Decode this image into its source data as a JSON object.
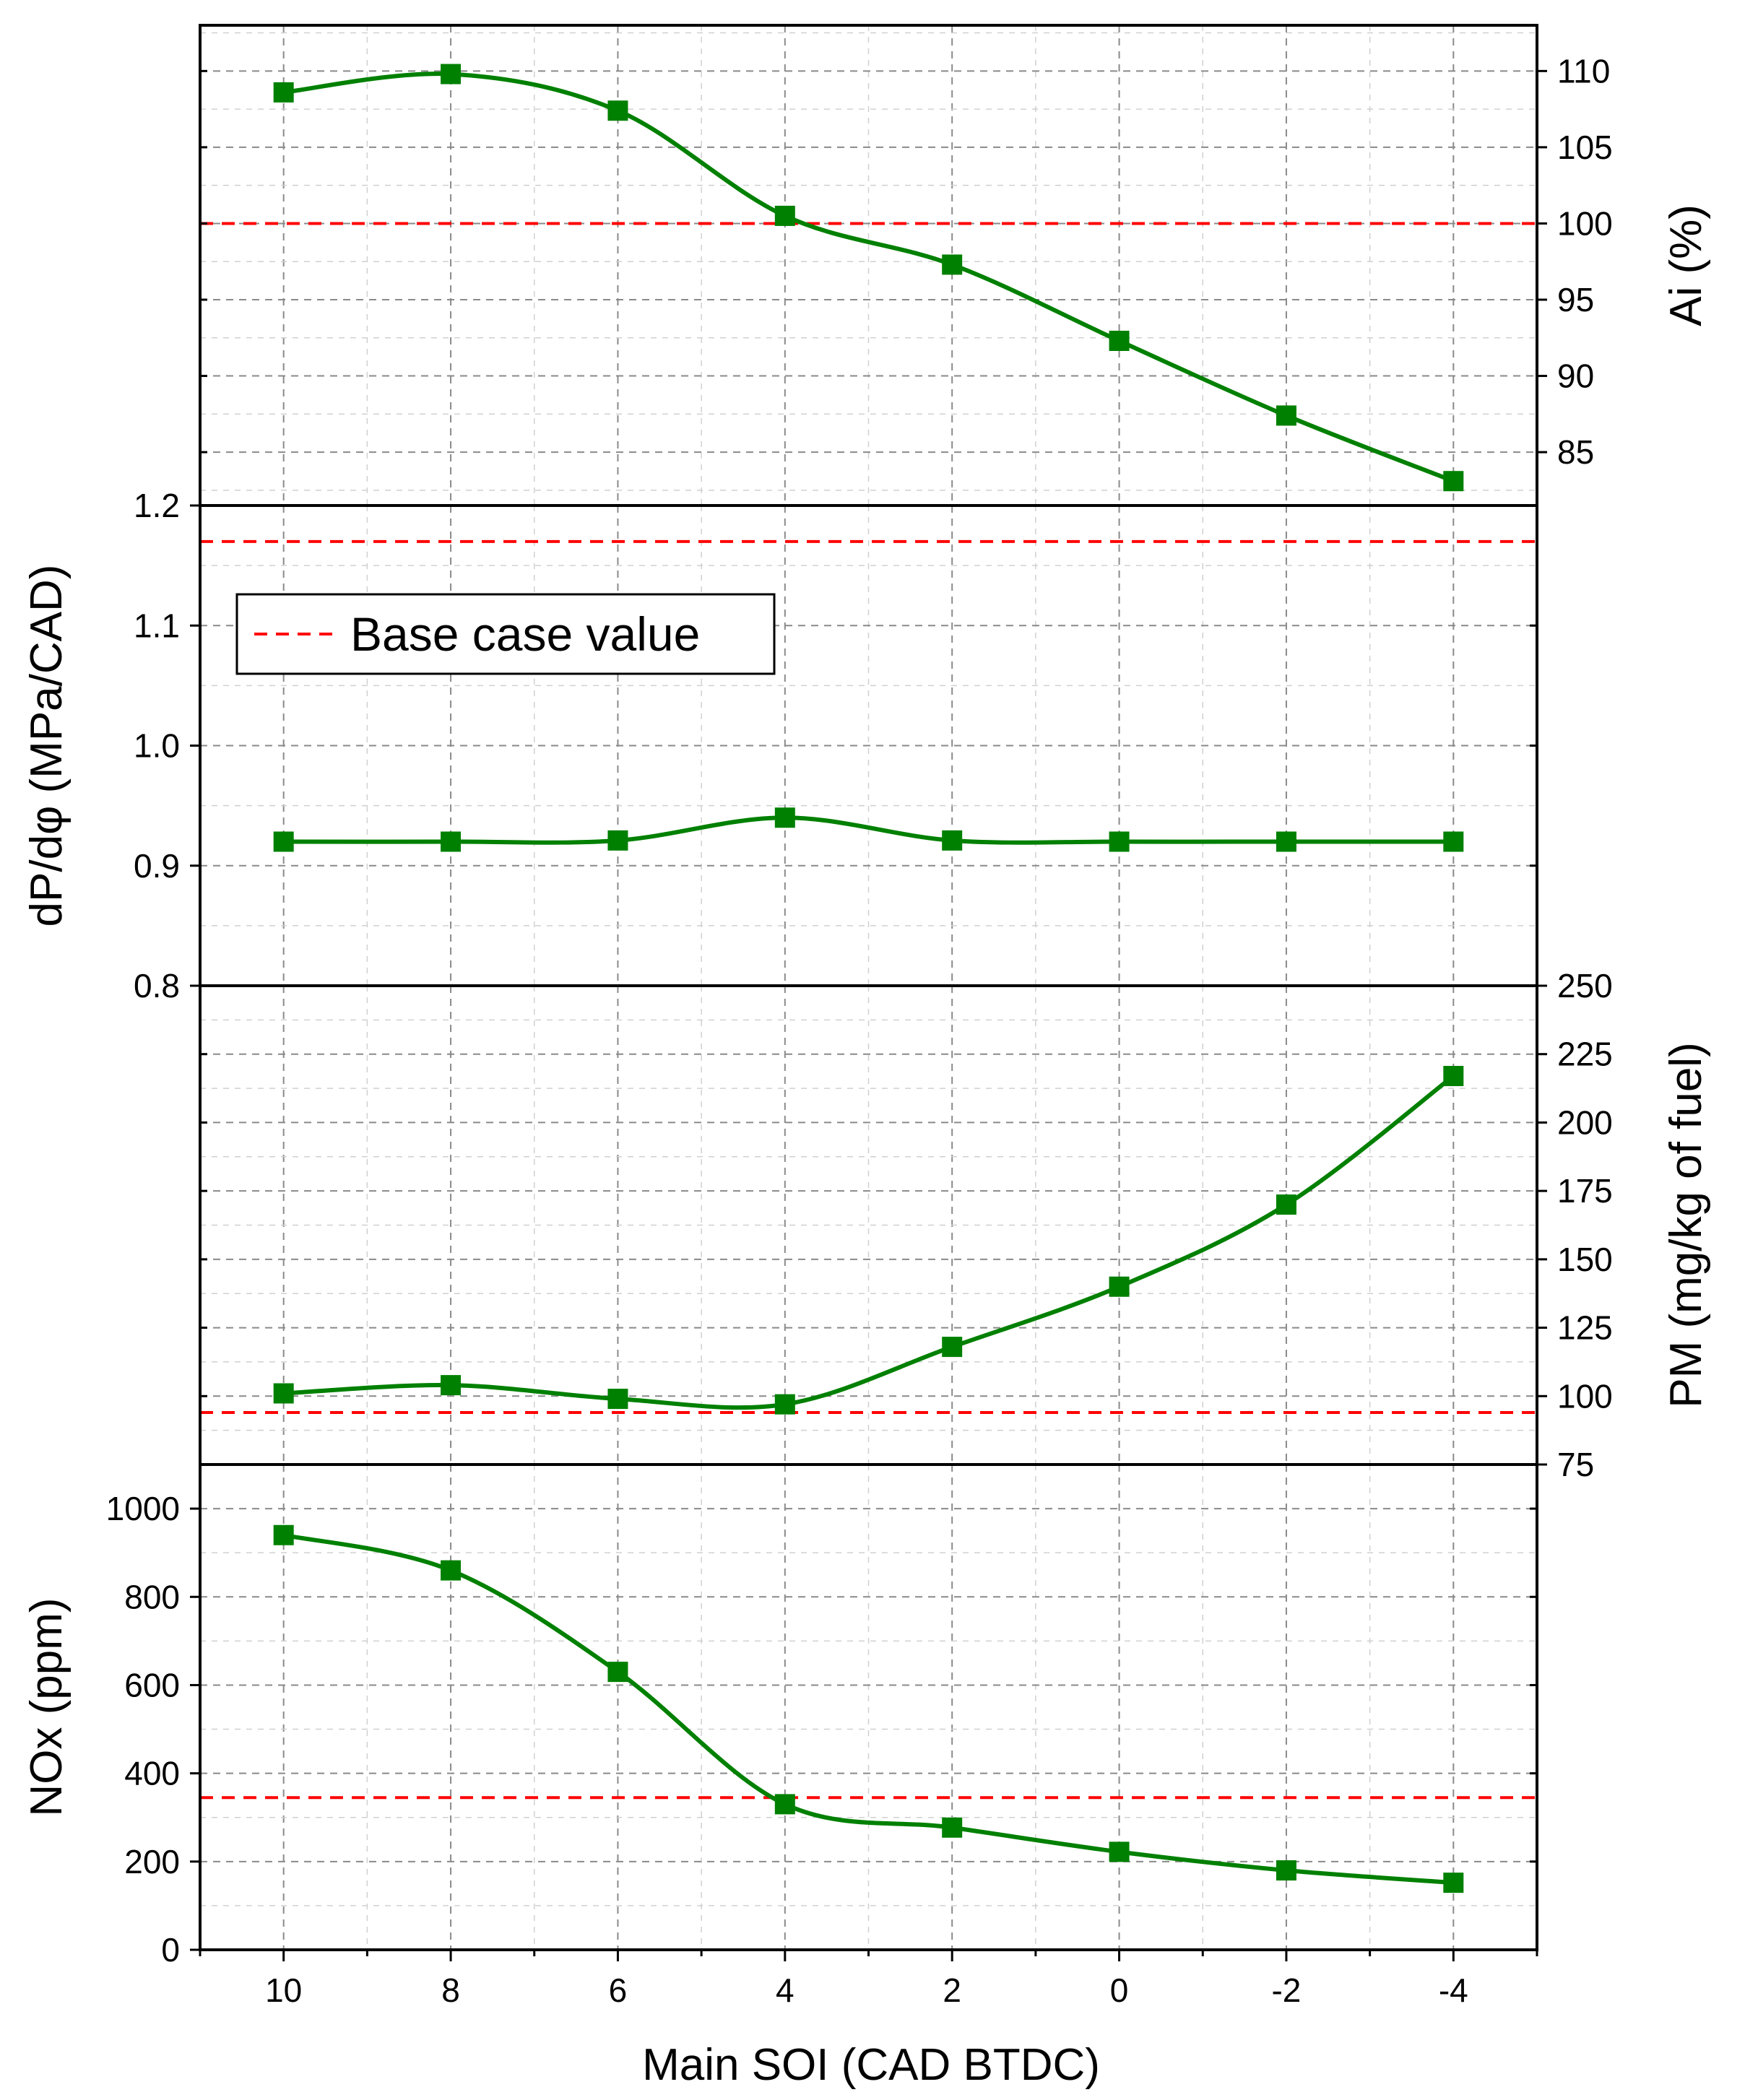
{
  "chart_data": {
    "type": "line",
    "xlabel": "Main SOI (CAD BTDC)",
    "x": [
      10,
      8,
      6,
      4,
      2,
      0,
      -2,
      -4
    ],
    "x_ticks": [
      "10",
      "8",
      "6",
      "4",
      "2",
      "0",
      "-2",
      "-4"
    ],
    "xlim": [
      11,
      -5
    ],
    "legend": {
      "label": "Base case value",
      "placement": "top-left of second panel"
    },
    "colors": {
      "series": "#008000",
      "base": "#ff0000"
    },
    "panels": [
      {
        "name": "ai",
        "ylabel": "Ai (%)",
        "axis_side": "right",
        "ylim": [
          81.5,
          113
        ],
        "yticks": [
          85,
          90,
          95,
          100,
          105,
          110
        ],
        "ytick_labels": [
          "85",
          "90",
          "95",
          "100",
          "105",
          "110"
        ],
        "values": [
          108.6,
          109.8,
          107.4,
          100.5,
          97.3,
          92.3,
          87.4,
          83.1
        ],
        "base_value": 100
      },
      {
        "name": "dpdphi",
        "ylabel": "dP/dφ (MPa/CAD)",
        "axis_side": "left",
        "ylim": [
          0.8,
          1.2
        ],
        "yticks": [
          0.8,
          0.9,
          1.0,
          1.1,
          1.2
        ],
        "ytick_labels": [
          "0.8",
          "0.9",
          "1.0",
          "1.1",
          "1.2"
        ],
        "values": [
          0.92,
          0.92,
          0.921,
          0.94,
          0.921,
          0.92,
          0.92,
          0.92
        ],
        "base_value": 1.17
      },
      {
        "name": "pm",
        "ylabel": "PM (mg/kg of fuel)",
        "axis_side": "right",
        "ylim": [
          75,
          250
        ],
        "yticks": [
          75,
          100,
          125,
          150,
          175,
          200,
          225,
          250
        ],
        "ytick_labels": [
          "75",
          "100",
          "125",
          "150",
          "175",
          "200",
          "225",
          "250"
        ],
        "values": [
          101,
          104,
          99,
          97,
          118,
          140,
          170,
          217
        ],
        "base_value": 94
      },
      {
        "name": "nox",
        "ylabel": "NOx (ppm)",
        "axis_side": "left",
        "ylim": [
          0,
          1100
        ],
        "yticks": [
          0,
          200,
          400,
          600,
          800,
          1000
        ],
        "ytick_labels": [
          "0",
          "200",
          "400",
          "600",
          "800",
          "1000"
        ],
        "values": [
          940,
          860,
          630,
          330,
          277,
          222,
          180,
          152
        ],
        "base_value": 345
      }
    ]
  }
}
